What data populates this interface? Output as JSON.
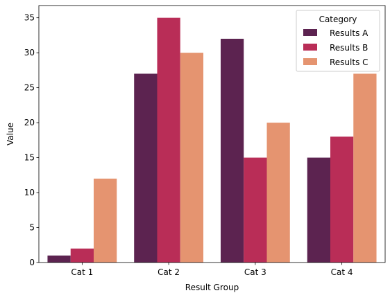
{
  "chart_data": {
    "type": "bar",
    "categories": [
      "Cat 1",
      "Cat 2",
      "Cat 3",
      "Cat 4"
    ],
    "series": [
      {
        "name": "Results A",
        "values": [
          1,
          27,
          32,
          15
        ],
        "color": "#5c2350"
      },
      {
        "name": "Results B",
        "values": [
          2,
          35,
          15,
          18
        ],
        "color": "#b92d57"
      },
      {
        "name": "Results C",
        "values": [
          12,
          30,
          20,
          27
        ],
        "color": "#e59470"
      }
    ],
    "xlabel": "Result Group",
    "ylabel": "Value",
    "ylim": [
      0,
      36.75
    ],
    "yticks": [
      0,
      5,
      10,
      15,
      20,
      25,
      30,
      35
    ],
    "legend": {
      "title": "Category",
      "placement": "top-right"
    },
    "grid": false
  }
}
